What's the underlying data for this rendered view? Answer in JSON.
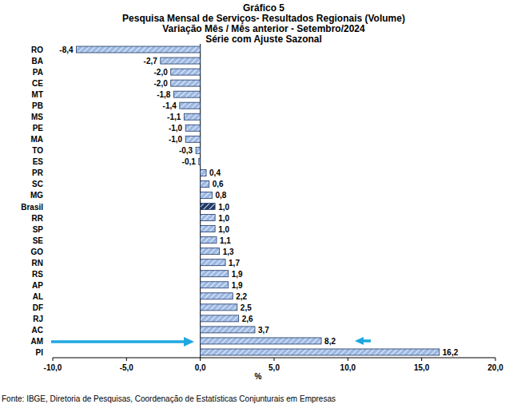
{
  "chart_data": {
    "type": "bar",
    "orientation": "horizontal",
    "title": "Gráfico 5",
    "subtitle": [
      "Pesquisa Mensal de Serviços- Resultados Regionais (Volume)",
      "Variação Mês / Mês anterior - Setembro/2024",
      "Série com Ajuste Sazonal"
    ],
    "xlabel": "%",
    "source": "Fonte: IBGE, Diretoria de Pesquisas, Coordenação de Estatísticas Conjunturais em Empresas",
    "categories": [
      "RO",
      "BA",
      "PA",
      "CE",
      "MT",
      "PB",
      "MS",
      "PE",
      "MA",
      "TO",
      "ES",
      "PR",
      "SC",
      "MG",
      "Brasil",
      "RR",
      "SP",
      "SE",
      "GO",
      "RN",
      "RS",
      "AP",
      "AL",
      "DF",
      "RJ",
      "AC",
      "AM",
      "PI"
    ],
    "values": [
      -8.4,
      -2.7,
      -2.0,
      -2.0,
      -1.8,
      -1.4,
      -1.1,
      -1.0,
      -1.0,
      -0.3,
      -0.1,
      0.4,
      0.6,
      0.8,
      1.0,
      1.0,
      1.0,
      1.1,
      1.3,
      1.7,
      1.9,
      1.9,
      2.2,
      2.5,
      2.6,
      3.7,
      8.2,
      16.2
    ],
    "value_labels": [
      "-8,4",
      "-2,7",
      "-2,0",
      "-2,0",
      "-1,8",
      "-1,4",
      "-1,1",
      "-1,0",
      "-1,0",
      "-0,3",
      "-0,1",
      "0,4",
      "0,6",
      "0,8",
      "1,0",
      "1,0",
      "1,0",
      "1,1",
      "1,3",
      "1,7",
      "1,9",
      "1,9",
      "2,2",
      "2,5",
      "2,6",
      "3,7",
      "8,2",
      "16,2"
    ],
    "colors": [
      "#9db9e3",
      "#9db9e3",
      "#9db9e3",
      "#9db9e3",
      "#9db9e3",
      "#9db9e3",
      "#9db9e3",
      "#9db9e3",
      "#9db9e3",
      "#9db9e3",
      "#9db9e3",
      "#9db9e3",
      "#9db9e3",
      "#9db9e3",
      "#1f3864",
      "#9db9e3",
      "#9db9e3",
      "#9db9e3",
      "#9db9e3",
      "#9db9e3",
      "#9db9e3",
      "#9db9e3",
      "#9db9e3",
      "#9db9e3",
      "#9db9e3",
      "#9db9e3",
      "#9db9e3",
      "#9db9e3"
    ],
    "xlim": [
      -10,
      20
    ],
    "xticks": [
      {
        "value": -10,
        "label": "-10,0"
      },
      {
        "value": -5,
        "label": "-5,0"
      },
      {
        "value": 0,
        "label": "0,0"
      },
      {
        "value": 5,
        "label": "5,0"
      },
      {
        "value": 10,
        "label": "10,0"
      },
      {
        "value": 15,
        "label": "15,0"
      },
      {
        "value": 20,
        "label": "20,0"
      }
    ],
    "data_labels": true,
    "grid": false
  }
}
